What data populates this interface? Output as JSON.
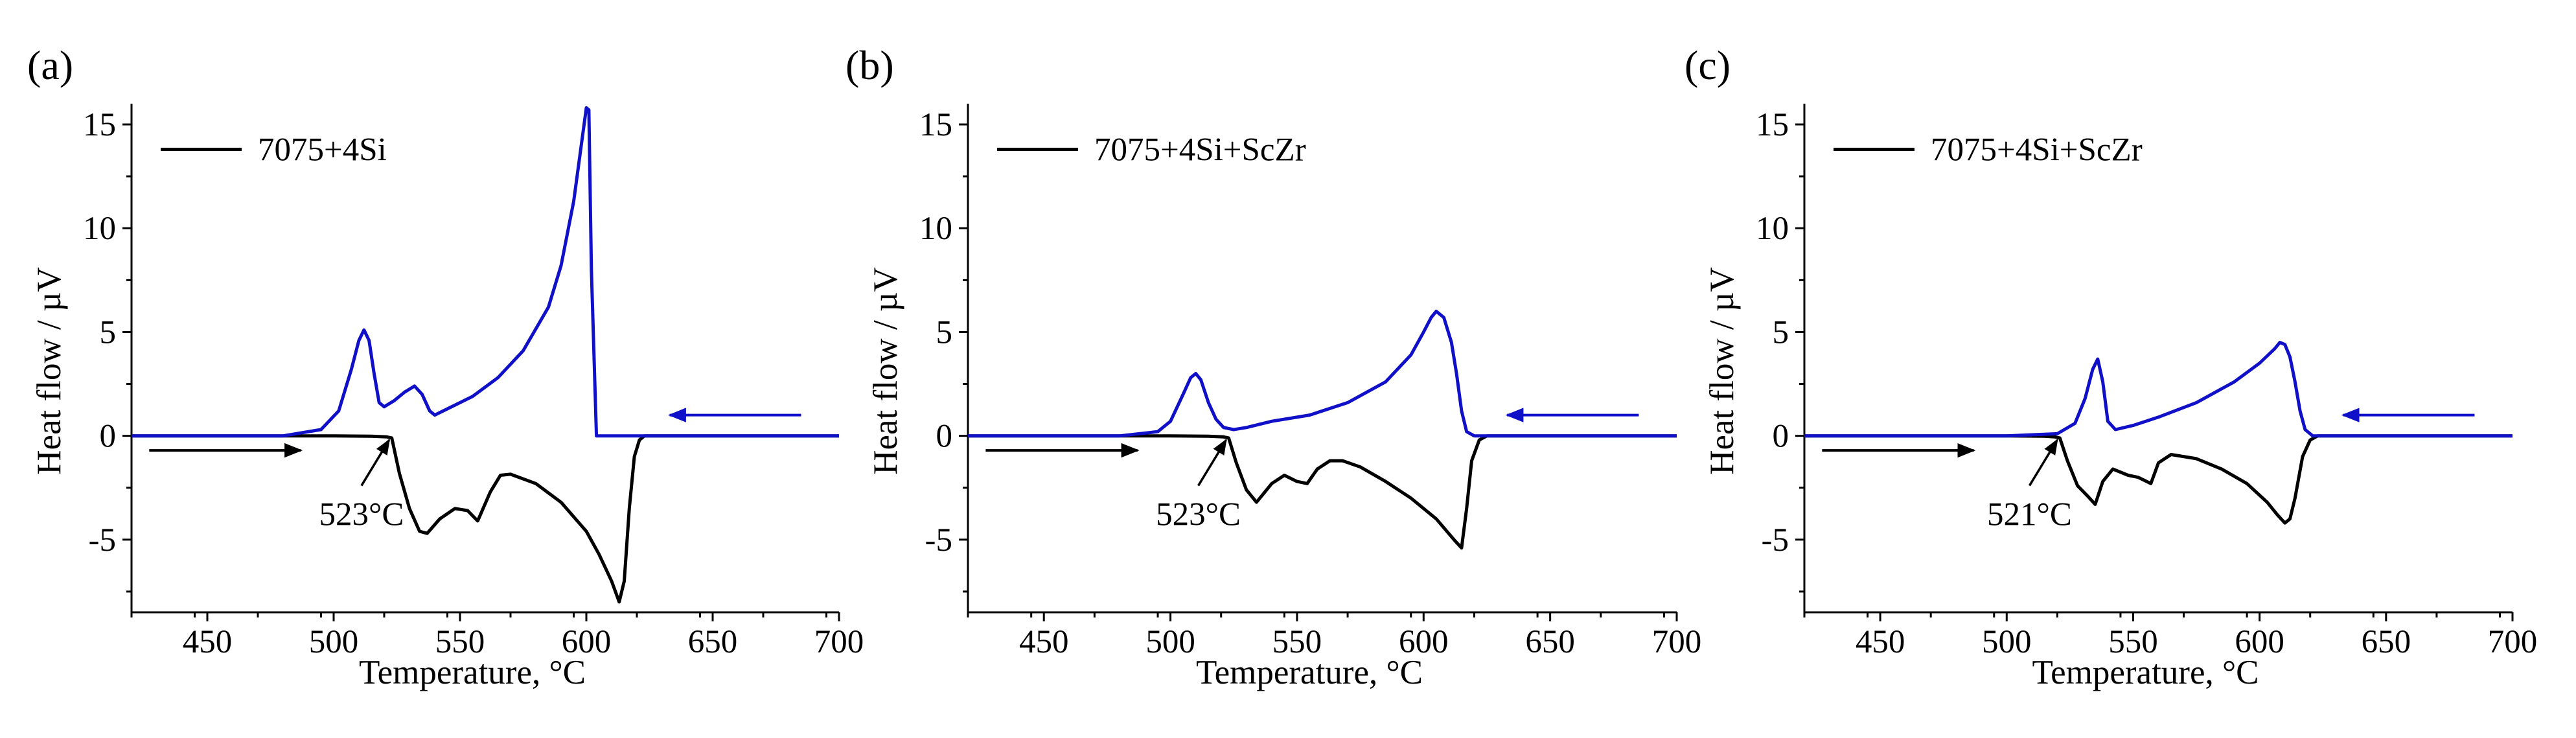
{
  "chart_data": [
    {
      "type": "line",
      "panel_label": "(a)",
      "xlabel": "Temperature, °C",
      "ylabel": "Heat flow / µV",
      "xlim": [
        420,
        700
      ],
      "ylim": [
        -8.5,
        16
      ],
      "xticks": [
        450,
        500,
        550,
        600,
        650,
        700
      ],
      "yticks": [
        -5,
        0,
        5,
        10,
        15
      ],
      "legend": "7075+4Si",
      "annotation": "523°C",
      "colors": {
        "heating": "#000000",
        "cooling": "#1010c8"
      },
      "series": [
        {
          "role": "heating",
          "x": [
            420,
            500,
            515,
            521,
            523,
            526,
            530,
            534,
            537,
            542,
            548,
            553,
            557,
            562,
            566,
            570,
            580,
            590,
            600,
            605,
            610,
            613,
            615,
            617,
            619,
            621,
            623,
            625,
            700
          ],
          "y": [
            0,
            0,
            -0.02,
            -0.05,
            -0.1,
            -1.8,
            -3.5,
            -4.6,
            -4.7,
            -4.0,
            -3.5,
            -3.6,
            -4.1,
            -2.7,
            -1.9,
            -1.85,
            -2.3,
            -3.2,
            -4.6,
            -5.7,
            -7.0,
            -8.0,
            -7.0,
            -3.5,
            -1.0,
            -0.2,
            0,
            0,
            0
          ]
        },
        {
          "role": "cooling",
          "x": [
            420,
            480,
            495,
            502,
            507,
            510,
            512,
            514,
            516,
            518,
            520,
            524,
            528,
            532,
            535,
            538,
            540,
            545,
            555,
            565,
            575,
            585,
            590,
            595,
            598,
            600,
            601,
            602,
            604,
            607,
            612,
            700
          ],
          "y": [
            0,
            0,
            0.3,
            1.2,
            3.2,
            4.6,
            5.1,
            4.6,
            3.0,
            1.6,
            1.4,
            1.7,
            2.1,
            2.4,
            2.0,
            1.2,
            1.0,
            1.3,
            1.9,
            2.8,
            4.1,
            6.2,
            8.2,
            11.3,
            14.0,
            15.8,
            15.7,
            8.0,
            0,
            0,
            0,
            0
          ]
        }
      ]
    },
    {
      "type": "line",
      "panel_label": "(b)",
      "xlabel": "Temperature, °C",
      "ylabel": "Heat flow / µV",
      "xlim": [
        420,
        700
      ],
      "ylim": [
        -8.5,
        16
      ],
      "xticks": [
        450,
        500,
        550,
        600,
        650,
        700
      ],
      "yticks": [
        -5,
        0,
        5,
        10,
        15
      ],
      "legend": "7075+4Si+ScZr",
      "annotation": "523°C",
      "colors": {
        "heating": "#000000",
        "cooling": "#1010c8"
      },
      "series": [
        {
          "role": "heating",
          "x": [
            420,
            500,
            515,
            521,
            523,
            526,
            530,
            534,
            540,
            545,
            550,
            554,
            558,
            563,
            568,
            575,
            585,
            595,
            605,
            612,
            615,
            617,
            619,
            622,
            625,
            700
          ],
          "y": [
            0,
            0,
            -0.02,
            -0.05,
            -0.1,
            -1.3,
            -2.6,
            -3.2,
            -2.3,
            -1.9,
            -2.2,
            -2.3,
            -1.6,
            -1.2,
            -1.2,
            -1.5,
            -2.2,
            -3.0,
            -4.0,
            -5.0,
            -5.4,
            -3.5,
            -1.2,
            -0.2,
            0,
            0
          ]
        },
        {
          "role": "cooling",
          "x": [
            420,
            480,
            495,
            500,
            505,
            508,
            510,
            512,
            515,
            518,
            521,
            525,
            530,
            540,
            555,
            570,
            585,
            595,
            600,
            603,
            605,
            608,
            611,
            613,
            615,
            617,
            620,
            700
          ],
          "y": [
            0,
            0,
            0.2,
            0.7,
            2.0,
            2.8,
            3.0,
            2.7,
            1.6,
            0.8,
            0.4,
            0.3,
            0.4,
            0.7,
            1.0,
            1.6,
            2.6,
            3.9,
            5.0,
            5.7,
            6.0,
            5.7,
            4.5,
            3.0,
            1.2,
            0.2,
            0,
            0
          ]
        }
      ]
    },
    {
      "type": "line",
      "panel_label": "(c)",
      "xlabel": "Temperature, °C",
      "ylabel": "Heat flow / µV",
      "xlim": [
        420,
        700
      ],
      "ylim": [
        -8.5,
        16
      ],
      "xticks": [
        450,
        500,
        550,
        600,
        650,
        700
      ],
      "yticks": [
        -5,
        0,
        5,
        10,
        15
      ],
      "legend": "7075+4Si+ScZr",
      "annotation": "521°C",
      "colors": {
        "heating": "#000000",
        "cooling": "#1010c8"
      },
      "series": [
        {
          "role": "heating",
          "x": [
            420,
            500,
            515,
            519,
            521,
            524,
            528,
            532,
            535,
            538,
            542,
            548,
            552,
            557,
            560,
            565,
            575,
            585,
            595,
            603,
            607,
            610,
            612,
            614,
            617,
            620,
            623,
            700
          ],
          "y": [
            0,
            0,
            -0.02,
            -0.05,
            -0.1,
            -1.2,
            -2.4,
            -2.9,
            -3.3,
            -2.2,
            -1.6,
            -1.9,
            -2.0,
            -2.3,
            -1.3,
            -0.9,
            -1.1,
            -1.6,
            -2.3,
            -3.2,
            -3.8,
            -4.2,
            -4.0,
            -3.0,
            -1.0,
            -0.2,
            0,
            0
          ]
        },
        {
          "role": "cooling",
          "x": [
            420,
            500,
            520,
            527,
            531,
            534,
            536,
            538,
            540,
            543,
            550,
            560,
            575,
            590,
            600,
            606,
            608,
            610,
            612,
            614,
            616,
            618,
            621,
            700
          ],
          "y": [
            0,
            0,
            0.1,
            0.6,
            1.8,
            3.2,
            3.7,
            2.6,
            0.7,
            0.3,
            0.5,
            0.9,
            1.6,
            2.6,
            3.5,
            4.2,
            4.5,
            4.4,
            3.8,
            2.6,
            1.2,
            0.3,
            0,
            0
          ]
        }
      ]
    }
  ]
}
